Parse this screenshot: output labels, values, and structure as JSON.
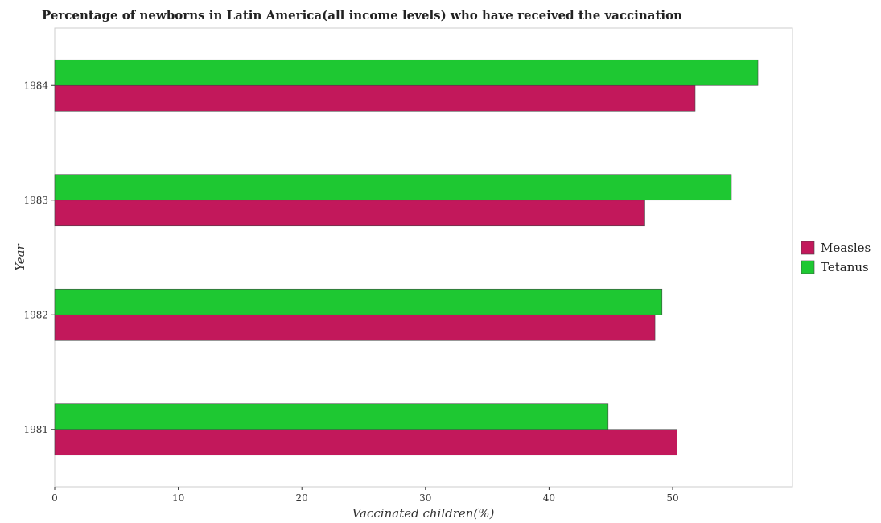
{
  "chart_data": {
    "type": "bar",
    "orientation": "horizontal",
    "title": "Percentage of newborns in Latin America(all income levels) who have received the vaccination",
    "xlabel": "Vaccinated children(%)",
    "ylabel": "Year",
    "categories": [
      "1981",
      "1982",
      "1983",
      "1984"
    ],
    "series": [
      {
        "name": "Measles",
        "color": "#c2185b",
        "values": [
          50.35,
          48.57,
          47.75,
          51.82
        ]
      },
      {
        "name": "Tetanus",
        "color": "#1ec832",
        "values": [
          44.78,
          49.14,
          54.75,
          56.9
        ]
      }
    ],
    "xlim": [
      0,
      59.7
    ],
    "xticks": [
      0,
      10,
      20,
      30,
      40,
      50
    ],
    "grid": false,
    "legend_position": "right"
  }
}
